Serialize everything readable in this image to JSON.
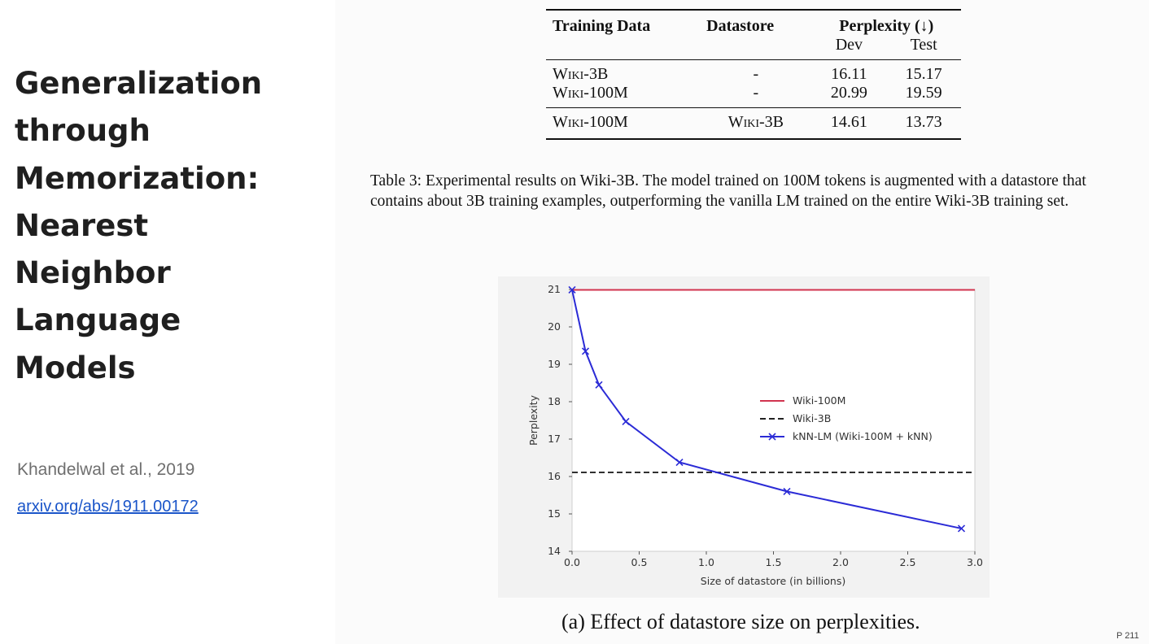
{
  "slide": {
    "title_lines": [
      "Generalization",
      "through",
      "Memorization:",
      "Nearest",
      "Neighbor",
      "Language",
      "Models"
    ],
    "citation": "Khandelwal et al., 2019",
    "link": "arxiv.org/abs/1911.00172"
  },
  "table": {
    "headers": {
      "training_data": "Training Data",
      "datastore": "Datastore",
      "perplexity": "Perplexity (↓)",
      "dev": "Dev",
      "test": "Test"
    },
    "rows": [
      {
        "training_data": "Wiki-3B",
        "datastore": "-",
        "dev": "16.11",
        "test": "15.17"
      },
      {
        "training_data": "Wiki-100M",
        "datastore": "-",
        "dev": "20.99",
        "test": "19.59"
      },
      {
        "training_data": "Wiki-100M",
        "datastore": "Wiki-3B",
        "dev": "14.61",
        "test": "13.73"
      }
    ],
    "caption": "Table 3: Experimental results on Wiki-3B. The model trained on 100M tokens is augmented with a datastore that contains about 3B training examples, outperforming the vanilla LM trained on the entire Wiki-3B training set."
  },
  "chart_data": {
    "type": "line",
    "title": "",
    "xlabel": "Size of datastore (in billions)",
    "ylabel": "Perplexity",
    "xlim": [
      0,
      3.0
    ],
    "ylim": [
      14,
      21
    ],
    "xticks": [
      "0.0",
      "0.5",
      "1.0",
      "1.5",
      "2.0",
      "2.5",
      "3.0"
    ],
    "yticks": [
      "14",
      "15",
      "16",
      "17",
      "18",
      "19",
      "20",
      "21"
    ],
    "legend_position": "center-right",
    "grid": false,
    "series": [
      {
        "name": "Wiki-100M",
        "style": "solid",
        "color": "#d1344f",
        "x": [
          0,
          3.0
        ],
        "y": [
          20.99,
          20.99
        ]
      },
      {
        "name": "Wiki-3B",
        "style": "dashed",
        "color": "#222222",
        "x": [
          0,
          3.0
        ],
        "y": [
          16.11,
          16.11
        ]
      },
      {
        "name": "kNN-LM (Wiki-100M + kNN)",
        "style": "solid-x-markers",
        "color": "#2b2bd6",
        "x": [
          0.0,
          0.1,
          0.2,
          0.4,
          0.8,
          1.6,
          2.9
        ],
        "y": [
          20.99,
          19.35,
          18.45,
          17.47,
          16.38,
          15.6,
          14.61
        ]
      }
    ],
    "caption": "(a) Effect of datastore size on perplexities."
  },
  "page_marker": "P 211"
}
